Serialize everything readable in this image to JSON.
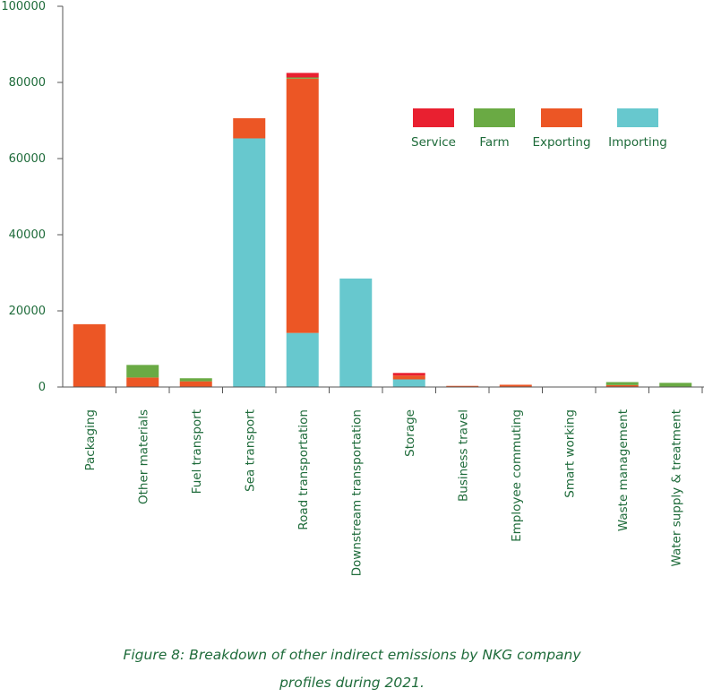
{
  "chart_data": {
    "type": "bar",
    "stacked": true,
    "title": "",
    "xlabel": "",
    "ylabel": "",
    "ylim": [
      0,
      100000
    ],
    "yticks": [
      0,
      20000,
      40000,
      60000,
      80000,
      100000
    ],
    "categories": [
      "Packaging",
      "Other materials",
      "Fuel transport",
      "Sea transport",
      "Road transportation",
      "Downstream transportation",
      "Storage",
      "Business travel",
      "Employee commuting",
      "Smart working",
      "Waste management",
      "Water supply & treatment"
    ],
    "series": [
      {
        "name": "Importing",
        "color": "#67c8ce",
        "values": [
          0,
          0,
          0,
          65300,
          14200,
          28500,
          2000,
          0,
          0,
          0,
          0,
          0
        ]
      },
      {
        "name": "Exporting",
        "color": "#ec5625",
        "values": [
          16500,
          2500,
          1500,
          5300,
          66800,
          0,
          1000,
          300,
          600,
          0,
          500,
          0
        ]
      },
      {
        "name": "Farm",
        "color": "#6aaa44",
        "values": [
          0,
          3300,
          800,
          0,
          300,
          0,
          0,
          0,
          0,
          0,
          800,
          1100
        ]
      },
      {
        "name": "Service",
        "color": "#e92030",
        "values": [
          0,
          0,
          0,
          0,
          1200,
          0,
          700,
          0,
          0,
          0,
          0,
          0
        ]
      }
    ],
    "legend_order": [
      "Service",
      "Farm",
      "Exporting",
      "Importing"
    ],
    "legend_position": "top-right"
  },
  "caption": {
    "line1": "Figure 8: Breakdown of other indirect emissions by NKG company",
    "line2": "profiles during 2021."
  }
}
